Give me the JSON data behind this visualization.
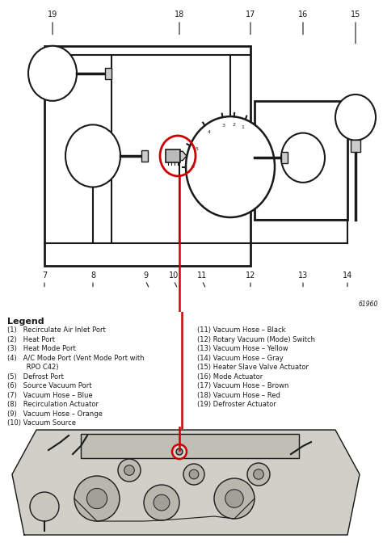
{
  "background_color": "#ffffff",
  "legend_title": "Legend",
  "legend_left": [
    "(1)   Recirculate Air Inlet Port",
    "(2)   Heat Port",
    "(3)   Heat Mode Port",
    "(4)   A/C Mode Port (Vent Mode Port with",
    "         RPO C42)",
    "(5)   Defrost Port",
    "(6)   Source Vacuum Port",
    "(7)   Vacuum Hose – Blue",
    "(8)   Recirculation Actuator",
    "(9)   Vacuum Hose – Orange",
    "(10) Vacuum Source"
  ],
  "legend_right": [
    "(11) Vacuum Hose – Black",
    "(12) Rotary Vacuum (Mode) Switch",
    "(13) Vacuum Hose – Yellow",
    "(14) Vacuum Hose – Gray",
    "(15) Heater Slave Valve Actuator",
    "(16) Mode Actuator",
    "(17) Vacuum Hose – Brown",
    "(18) Vacuum Hose – Red",
    "(19) Defroster Actuator"
  ],
  "fig_code": "61960",
  "schematic_bg": "#f2f0eb",
  "white": "#ffffff",
  "black": "#1a1a1a",
  "red": "#cc0000"
}
